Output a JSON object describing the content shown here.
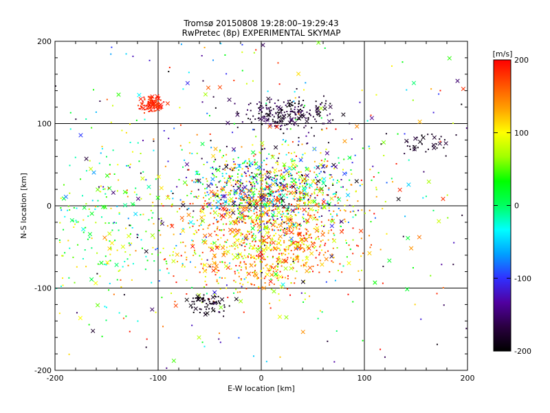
{
  "title_line1": "Tromsø 20150808 19:28:00–19:29:43",
  "title_line2": "RwPretec (8p) EXPERIMENTAL SKYMAP",
  "chart_data": {
    "type": "scatter",
    "xlabel": "E-W location [km]",
    "ylabel": "N-S location [km]",
    "xlim": [
      -200,
      200
    ],
    "ylim": [
      -200,
      200
    ],
    "xticks": [
      "-200",
      "-100",
      "0",
      "100",
      "200"
    ],
    "yticks": [
      "-200",
      "-100",
      "0",
      "100",
      "200"
    ],
    "grid": true,
    "colorbar": {
      "unit_label": "[m/s]",
      "min": -200,
      "max": 200,
      "ticks": [
        "200",
        "100",
        "0",
        "-100",
        "-200"
      ],
      "colormap": [
        "#000000",
        "#2a0040",
        "#5000a0",
        "#3030ff",
        "#00a0ff",
        "#00ffff",
        "#00ff60",
        "#00ff00",
        "#a0ff00",
        "#ffff00",
        "#ffa000",
        "#ff5000",
        "#ff0000"
      ]
    },
    "clusters": [
      {
        "x": -105,
        "y": 123,
        "sx": 6,
        "sy": 5,
        "n": 120,
        "vmin": 170,
        "vmax": 200
      },
      {
        "x": 25,
        "y": 112,
        "sx": 20,
        "sy": 10,
        "n": 220,
        "vmin": -200,
        "vmax": -150
      },
      {
        "x": 10,
        "y": 20,
        "sx": 40,
        "sy": 25,
        "n": 900,
        "vmin": -200,
        "vmax": 200
      },
      {
        "x": 0,
        "y": -40,
        "sx": 45,
        "sy": 35,
        "n": 900,
        "vmin": 60,
        "vmax": 200
      },
      {
        "x": -52,
        "y": -118,
        "sx": 10,
        "sy": 7,
        "n": 70,
        "vmin": -200,
        "vmax": -180
      },
      {
        "x": 160,
        "y": 75,
        "sx": 15,
        "sy": 7,
        "n": 35,
        "vmin": -200,
        "vmax": -170
      },
      {
        "x": -150,
        "y": -30,
        "sx": 40,
        "sy": 50,
        "n": 200,
        "vmin": -50,
        "vmax": 120
      },
      {
        "x": 0,
        "y": 0,
        "sx": 130,
        "sy": 130,
        "n": 600,
        "vmin": -200,
        "vmax": 200
      }
    ],
    "markers": [
      "x",
      "dot"
    ]
  }
}
